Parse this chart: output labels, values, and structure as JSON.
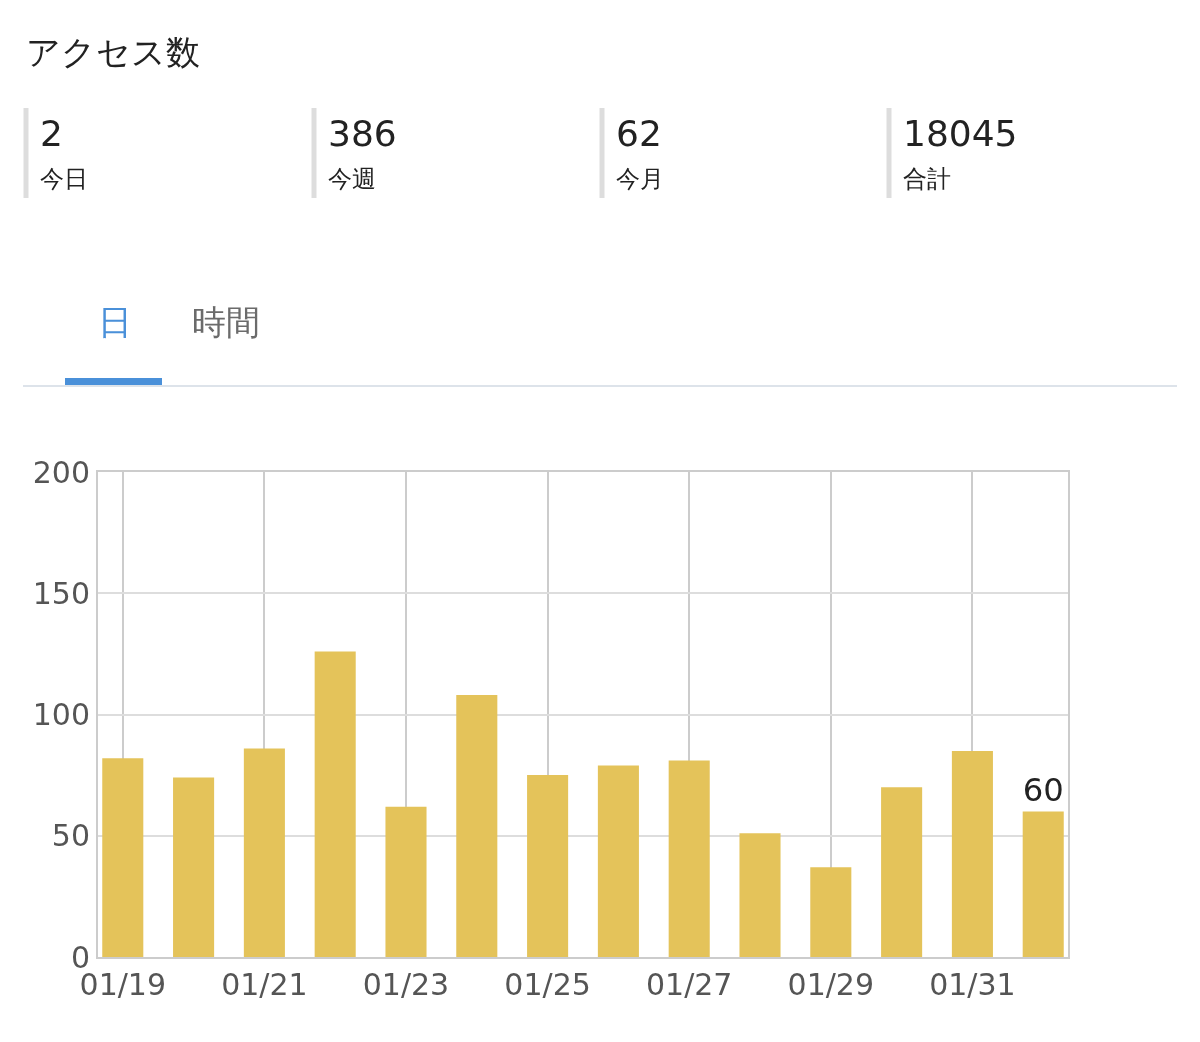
{
  "chart_data": {
    "type": "bar",
    "title": "アクセス数",
    "annotations": [
      "2",
      "今日",
      "386",
      "今週",
      "62",
      "今月",
      "18045",
      "合計",
      "日",
      "時間"
    ],
    "categories": [
      "01/19",
      null,
      "01/21",
      null,
      "01/23",
      null,
      "01/25",
      null,
      "01/27",
      null,
      "01/29",
      null,
      "01/31",
      null
    ],
    "values": [
      82,
      74,
      86,
      126,
      62,
      108,
      75,
      79,
      81,
      51,
      37,
      70,
      85,
      60
    ],
    "value_labels": [
      null,
      null,
      null,
      null,
      null,
      null,
      null,
      null,
      null,
      null,
      null,
      null,
      null,
      "60"
    ],
    "color": "#e4c35a",
    "ylim": [
      0,
      200
    ],
    "yticks": [
      0,
      50,
      100,
      150,
      200
    ],
    "grid": true
  }
}
